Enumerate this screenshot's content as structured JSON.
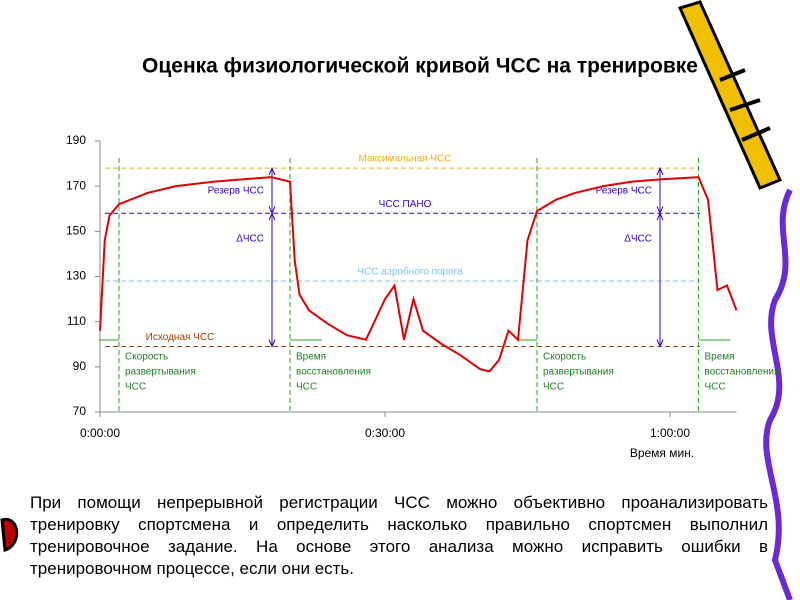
{
  "chart_data": {
    "type": "line",
    "title": "Оценка физиологической кривой ЧСС на тренировке",
    "x_label": "Время мин.",
    "xlim": [
      0,
      67
    ],
    "xticks": [
      {
        "value": 0,
        "label": "0:00:00"
      },
      {
        "value": 30,
        "label": "0:30:00"
      },
      {
        "value": 60,
        "label": "1:00:00"
      }
    ],
    "ylim": [
      70,
      190
    ],
    "yticks": [
      70,
      90,
      110,
      130,
      150,
      170,
      190
    ],
    "series": [
      {
        "name": "ЧСС",
        "color": "#e00000",
        "x": [
          0,
          0.5,
          1,
          2,
          5,
          8,
          12,
          15,
          18,
          20,
          20.5,
          21,
          22,
          24,
          26,
          28,
          30,
          31,
          32,
          33,
          34,
          36,
          38,
          40,
          41,
          42,
          43,
          44,
          45,
          46,
          48,
          50,
          53,
          56,
          59,
          63,
          64,
          65,
          66,
          67
        ],
        "values": [
          106,
          146,
          157,
          162,
          167,
          170,
          172,
          173,
          174,
          172,
          137,
          122,
          115,
          109,
          104,
          102,
          120,
          126,
          102,
          120,
          106,
          100,
          95,
          89,
          88,
          93,
          106,
          102,
          146,
          159,
          164,
          167,
          170,
          172,
          173,
          174,
          164,
          124,
          126,
          115
        ]
      }
    ],
    "reference_lines": [
      {
        "label": "Максимальная ЧСС",
        "value": 178,
        "color": "#f0b000"
      },
      {
        "label": "ЧСС ПАНО",
        "value": 158,
        "color": "#3a00c0"
      },
      {
        "label": "ЧСС аэробного порога",
        "value": 128,
        "color": "#80c0f0"
      },
      {
        "label": "Исходная ЧСС",
        "value": 99,
        "color": "#a04000"
      }
    ],
    "phase_lines": [
      2,
      20,
      46,
      63
    ],
    "phase_labels": [
      [
        "Скорость",
        "развертывания",
        "ЧСС"
      ],
      [
        "Время",
        "восстановления",
        "ЧСС"
      ],
      [
        "Скорость",
        "развертывания",
        "ЧСС"
      ],
      [
        "Время",
        "восстановления",
        "ЧСС"
      ]
    ],
    "annotations": [
      "Резерв ЧСС",
      "ΔЧСС",
      "Резерв ЧСС",
      "ΔЧСС"
    ]
  },
  "paragraph": "При помощи непрерывной регистрации ЧСС можно объективно проанализировать тренировку спортсмена и определить насколько правильно спортсмен выполнил тренировочное задание. На основе этого анализа можно исправить ошибки в тренировочном процессе, если они есть."
}
